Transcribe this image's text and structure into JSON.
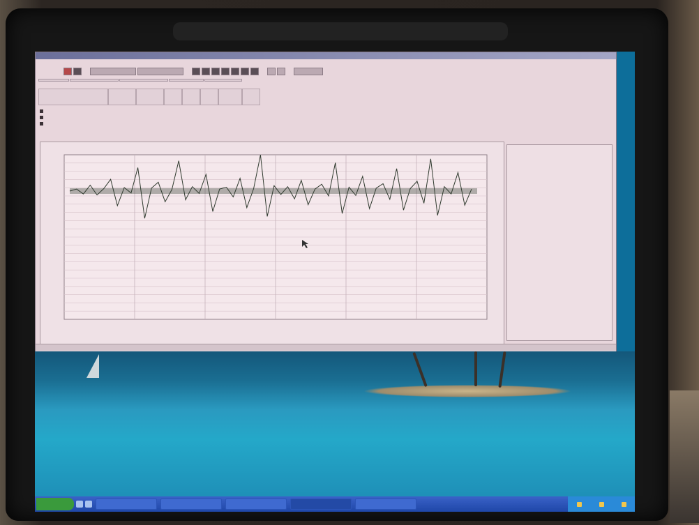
{
  "colors": {
    "app_background": "#e8d6dc",
    "signal_trace": "#2f3a2e",
    "taskbar": "#2b53b8",
    "desktop_water": "#24a8c9"
  },
  "icons": [
    "start-button",
    "toolbar-record-icon",
    "toolbar-stop-icon",
    "mouse-cursor-icon",
    "tray-icon"
  ],
  "chart_data": {
    "type": "line",
    "title": "",
    "xlabel": "",
    "ylabel": "",
    "series": [
      {
        "values": [
          0,
          0.4,
          -0.6,
          1.2,
          -0.8,
          0.5,
          2.4,
          -3.0,
          0.7,
          -0.4,
          4.8,
          -5.6,
          0.6,
          1.8,
          -2.2,
          0.3,
          6.2,
          -1.8,
          0.9,
          -0.5,
          3.4,
          -4.2,
          0.4,
          0.8,
          -1.2,
          2.6,
          -3.4,
          0.5,
          7.4,
          -5.2,
          1.1,
          -0.7,
          0.9,
          -1.6,
          2.2,
          -2.8,
          0.4,
          1.4,
          -1.0,
          5.8,
          -4.6,
          0.8,
          -0.9,
          3.0,
          -3.6,
          0.6,
          1.5,
          -1.7,
          4.6,
          -3.9,
          0.5,
          2.0,
          -2.5,
          6.6,
          -5.0,
          0.9,
          -0.6,
          3.8,
          -2.9,
          0.4
        ]
      }
    ],
    "grid": true,
    "legend": "none"
  }
}
